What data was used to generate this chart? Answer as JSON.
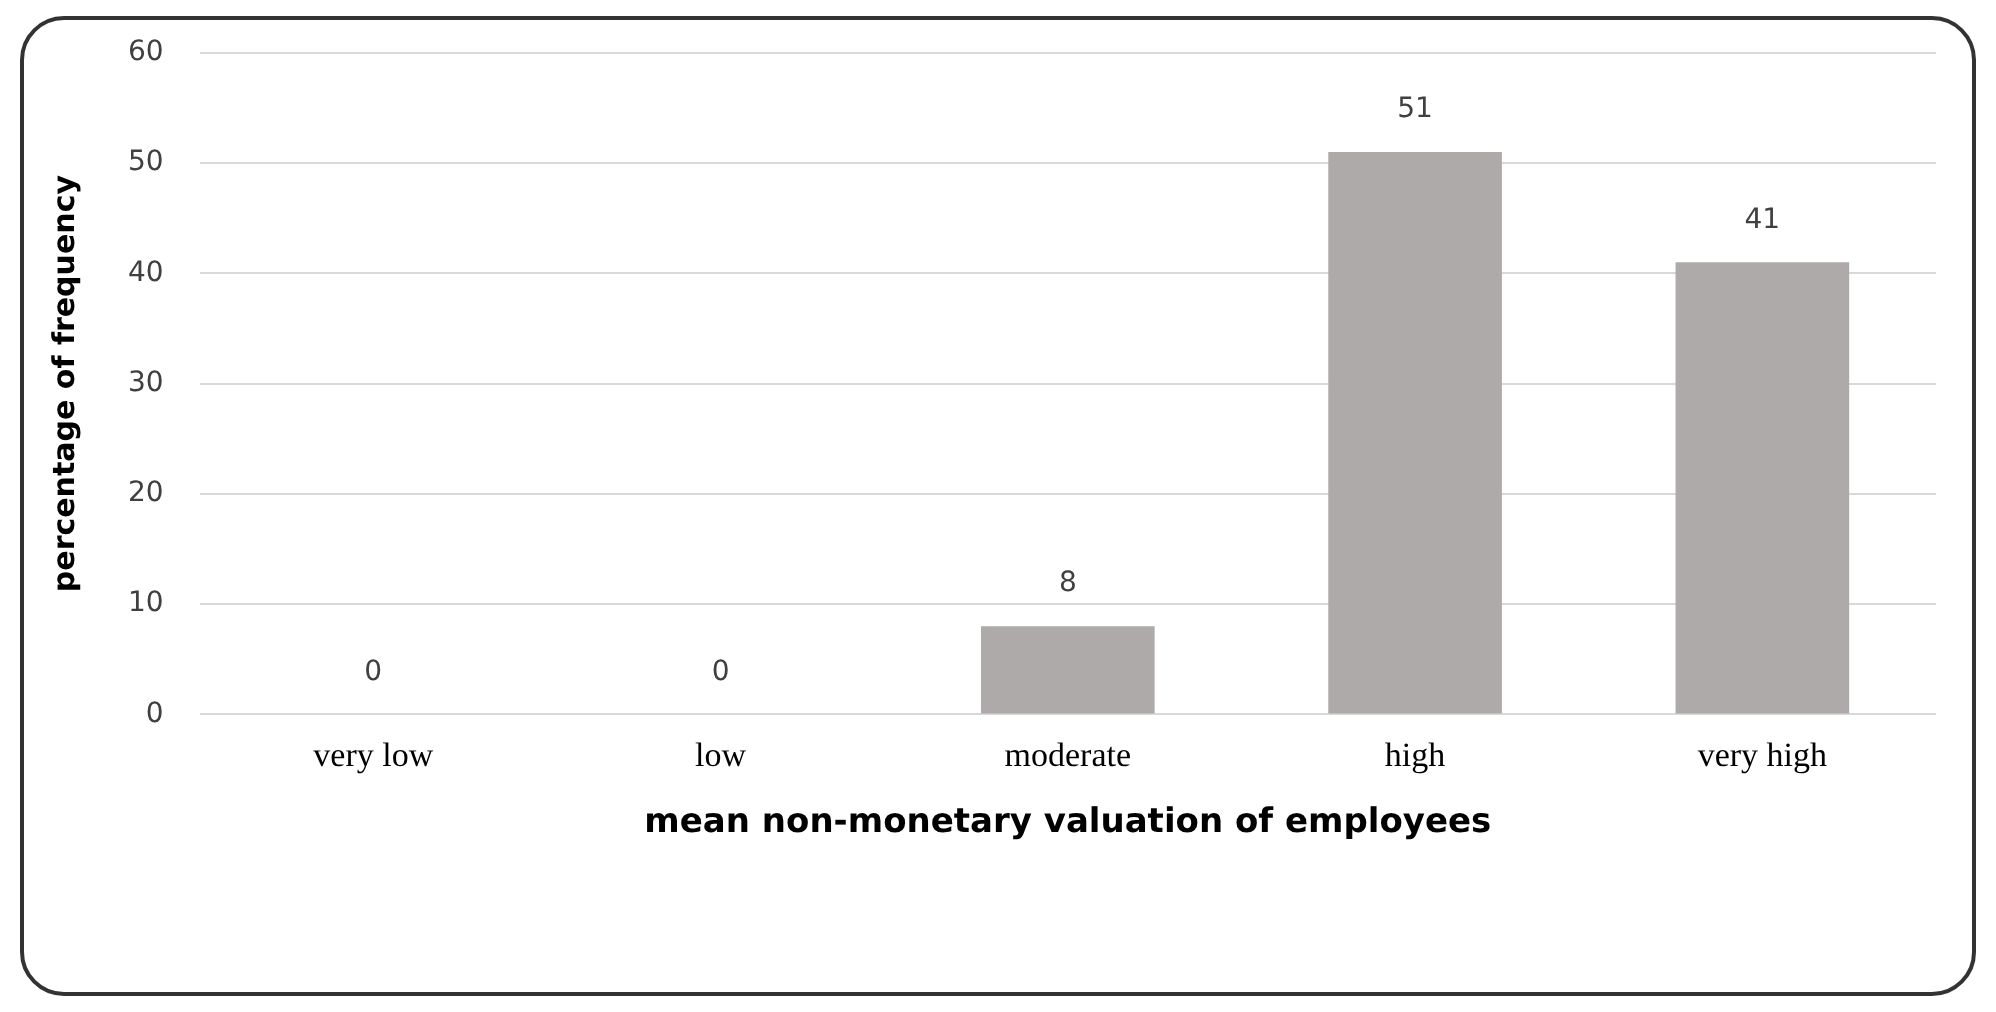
{
  "chart_data": {
    "type": "bar",
    "xlabel": "mean non-monetary valuation of employees",
    "ylabel": "percentage of frequency",
    "categories": [
      "very low",
      "low",
      "moderate",
      "high",
      "very high"
    ],
    "values": [
      0,
      0,
      8,
      51,
      41
    ],
    "color": "#aeaaaa",
    "ylim": [
      0,
      60
    ],
    "yticks": [
      0,
      10,
      20,
      30,
      40,
      50,
      60
    ],
    "grid": "y",
    "data_labels": true,
    "legend": false
  }
}
